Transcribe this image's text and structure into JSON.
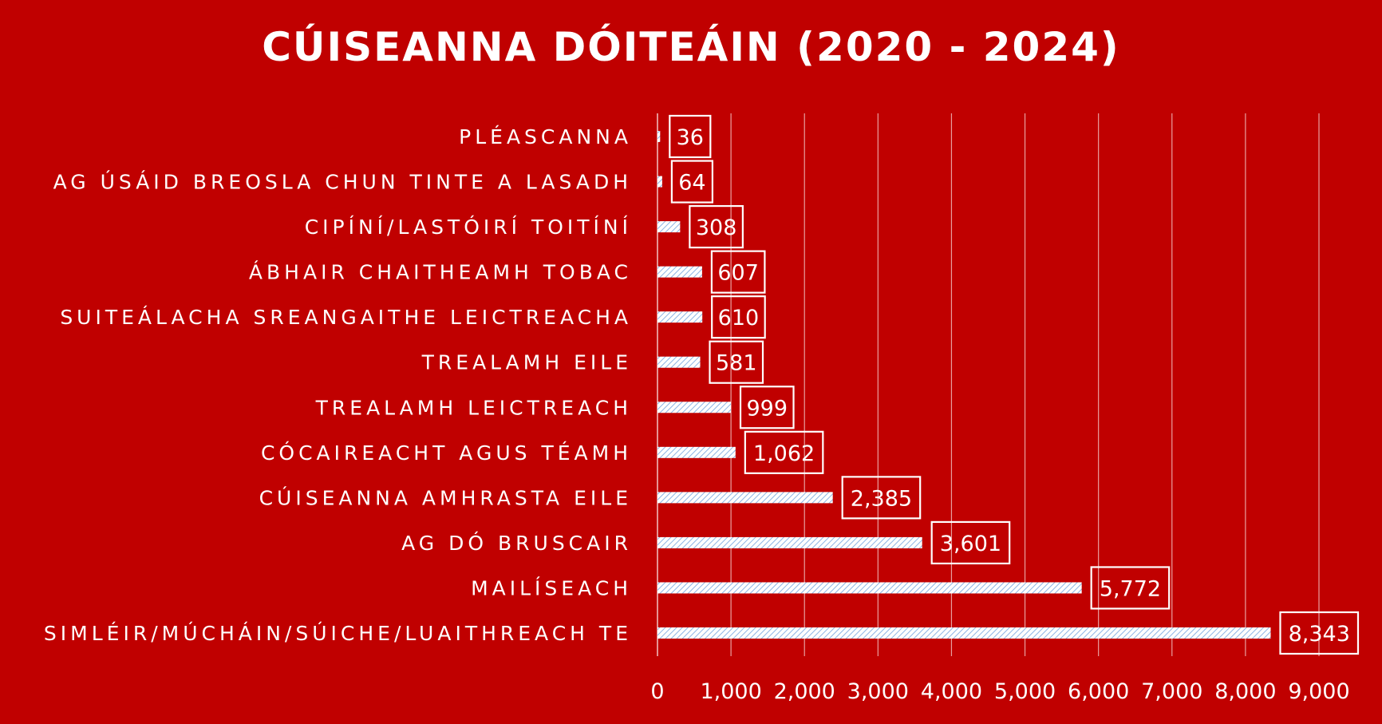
{
  "chart_data": {
    "type": "bar",
    "orientation": "horizontal",
    "title": "CÚISEANNA DÓITEÁIN (2020 - 2024)",
    "categories": [
      "PLÉASCANNA",
      "AG ÚSÁID BREOSLA CHUN TINTE A LASADH",
      "CIPÍNÍ/LASTÓIRÍ TOITÍNÍ",
      "ÁBHAIR CHAITHEAMH TOBAC",
      "SUITEÁLACHA SREANGAITHE LEICTREACHA",
      "TREALAMH EILE",
      "TREALAMH LEICTREACH",
      "CÓCAIREACHT AGUS TÉAMH",
      "CÚISEANNA AMHRASTA EILE",
      "AG DÓ BRUSCAIR",
      "MAILÍSEACH",
      "SIMLÉIR/MÚCHÁIN/SÚICHE/LUAITHREACH TE"
    ],
    "values": [
      36,
      64,
      308,
      607,
      610,
      581,
      999,
      1062,
      2385,
      3601,
      5772,
      8343
    ],
    "data_labels": [
      "36",
      "64",
      "308",
      "607",
      "610",
      "581",
      "999",
      "1,062",
      "2,385",
      "3,601",
      "5,772",
      "8,343"
    ],
    "xlim": [
      0,
      9000
    ],
    "x_ticks": [
      0,
      1000,
      2000,
      3000,
      4000,
      5000,
      6000,
      7000,
      8000,
      9000
    ],
    "x_tick_labels": [
      "0",
      "1,000",
      "2,000",
      "3,000",
      "4,000",
      "5,000",
      "6,000",
      "7,000",
      "8,000",
      "9,000"
    ],
    "grid": "vertical",
    "legend": "none",
    "colors": {
      "background": "#c00000",
      "text": "#ffffff",
      "bar_fill": "#ffffff",
      "bar_hatch": "#8eb4e3",
      "gridline": "#e8a0a0"
    }
  }
}
